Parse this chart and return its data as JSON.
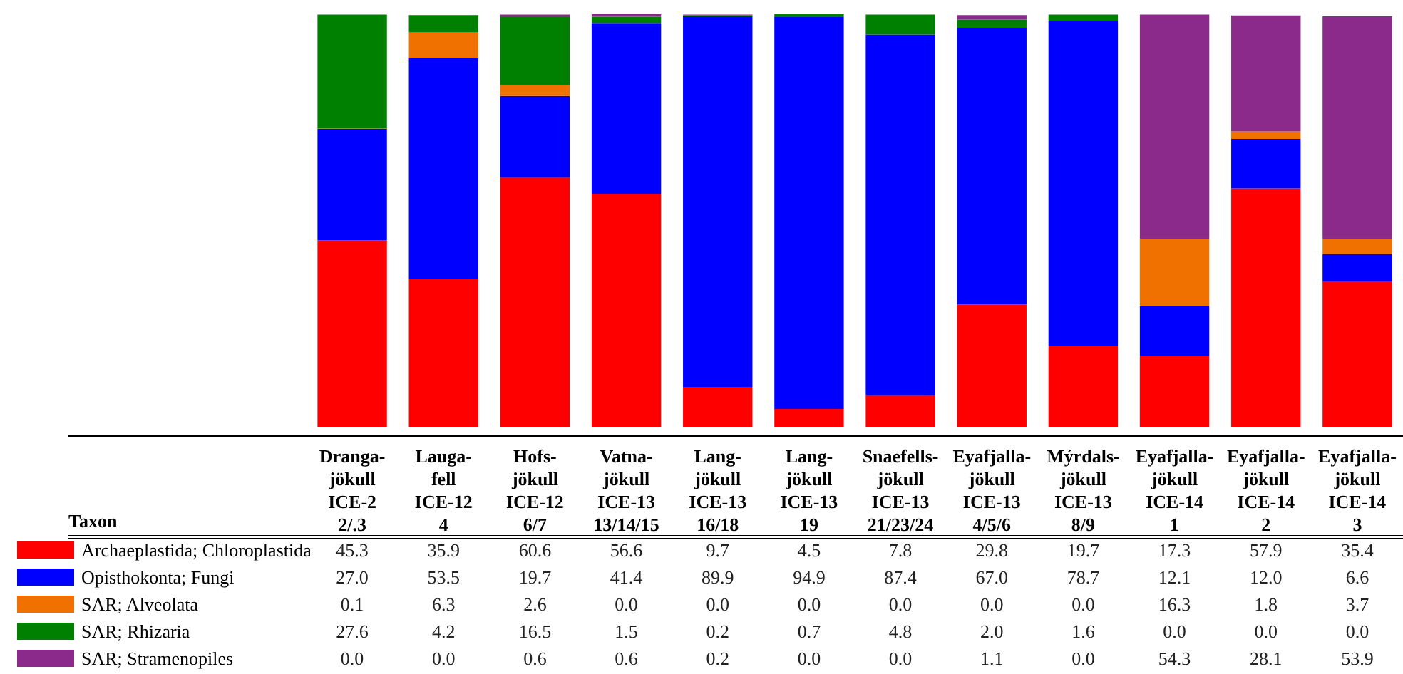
{
  "chart_data": {
    "type": "bar",
    "stacked": true,
    "legend": "bottom left",
    "legend_title": "Taxon",
    "tick_labels": "x",
    "categories": [
      "Dranga-\njökull\nICE-2\n2/.3",
      "Lauga-\nfell\nICE-12\n4",
      "Hofs-\njökull\nICE-12\n6/7",
      "Vatna-\njökull\nICE-13\n13/14/15",
      "Lang-\njökull\nICE-13\n16/18",
      "Lang-\njökull\nICE-13\n19",
      "Snaefells-\njökull\nICE-13\n21/23/24",
      "Eyafjalla-\njökull\nICE-13\n4/5/6",
      "Mýrdals-\njökull\nICE-13\n8/9",
      "Eyafjalla-\njökull\nICE-14\n1",
      "Eyafjalla-\njökull\nICE-14\n2",
      "Eyafjalla-\njökull\nICE-14\n3"
    ],
    "series": [
      {
        "name": "Archaeplastida; Chloroplastida",
        "color": "#ff0000",
        "values": [
          45.3,
          35.9,
          60.6,
          56.6,
          9.7,
          4.5,
          7.8,
          29.8,
          19.7,
          17.3,
          57.9,
          35.4
        ],
        "value_labels": [
          "45.3",
          "35.9",
          "60.6",
          "56.6",
          "9.7",
          "4.5",
          "7.8",
          "29.8",
          "19.7",
          "17.3",
          "57.9",
          "35.4"
        ]
      },
      {
        "name": "Opisthokonta; Fungi",
        "color": "#0000ff",
        "values": [
          27.0,
          53.5,
          19.7,
          41.4,
          89.9,
          94.9,
          87.4,
          67.0,
          78.7,
          12.1,
          12.0,
          6.6
        ],
        "value_labels": [
          "27.0",
          "53.5",
          "19.7",
          "41.4",
          "89.9",
          "94.9",
          "87.4",
          "67.0",
          "78.7",
          "12.1",
          "12.0",
          "6.6"
        ]
      },
      {
        "name": "SAR; Alveolata",
        "color": "#f07000",
        "values": [
          0.1,
          6.3,
          2.6,
          0.0,
          0.0,
          0.0,
          0.0,
          0.0,
          0.0,
          16.3,
          1.8,
          3.7
        ],
        "value_labels": [
          "0.1",
          "6.3",
          "2.6",
          "0.0",
          "0.0",
          "0.0",
          "0.0",
          "0.0",
          "0.0",
          "16.3",
          "1.8",
          "3.7"
        ]
      },
      {
        "name": "SAR; Rhizaria",
        "color": "#008000",
        "values": [
          27.6,
          4.2,
          16.5,
          1.5,
          0.2,
          0.7,
          4.8,
          2.0,
          1.6,
          0.0,
          0.0,
          0.0
        ],
        "value_labels": [
          "27.6",
          "4.2",
          "16.5",
          "1.5",
          "0.2",
          "0.7",
          "4.8",
          "2.0",
          "1.6",
          "0.0",
          "0.0",
          "0.0"
        ]
      },
      {
        "name": "SAR; Stramenopiles",
        "color": "#8b2a8b",
        "values": [
          0.0,
          0.0,
          0.6,
          0.6,
          0.2,
          0.0,
          0.0,
          1.1,
          0.0,
          54.3,
          28.1,
          53.9
        ],
        "value_labels": [
          "0.0",
          "0.0",
          "0.6",
          "0.6",
          "0.2",
          "0.0",
          "0.0",
          "1.1",
          "0.0",
          "54.3",
          "28.1",
          "53.9"
        ]
      }
    ]
  }
}
